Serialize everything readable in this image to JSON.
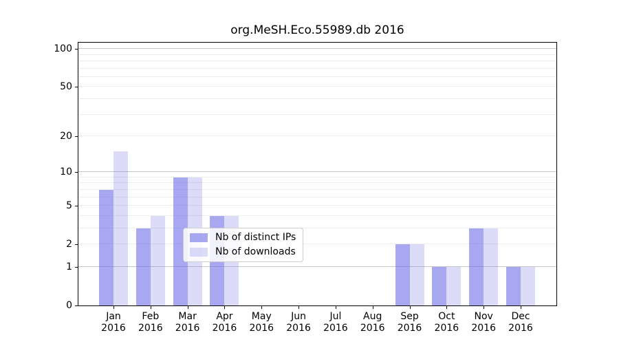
{
  "figure": {
    "background": "#ffffff",
    "frame_color": "#000000"
  },
  "chart_data": {
    "type": "bar",
    "title": "org.MeSH.Eco.55989.db 2016",
    "xlabel": "",
    "ylabel": "",
    "categories": [
      "Jan",
      "Feb",
      "Mar",
      "Apr",
      "May",
      "Jun",
      "Jul",
      "Aug",
      "Sep",
      "Oct",
      "Nov",
      "Dec"
    ],
    "category_year": "2016",
    "series": [
      {
        "name": "Nb of distinct IPs",
        "color": "rgba(114,114,232,0.62)",
        "values": [
          7,
          3,
          9,
          4,
          0,
          0,
          0,
          0,
          2,
          1,
          3,
          1
        ]
      },
      {
        "name": "Nb of downloads",
        "color": "rgba(114,114,232,0.25)",
        "values": [
          15,
          4,
          9,
          4,
          0,
          0,
          0,
          0,
          2,
          1,
          3,
          1
        ]
      }
    ],
    "y_axis": {
      "scale": "log10(1+x)",
      "tick_labels": [
        0,
        1,
        2,
        5,
        10,
        20,
        50,
        100
      ],
      "major_gridlines": [
        1,
        10,
        100
      ],
      "minor_gridlines": [
        2,
        3,
        4,
        5,
        6,
        7,
        8,
        9,
        20,
        30,
        40,
        50,
        60,
        70,
        80,
        90
      ],
      "ylim": [
        0,
        112
      ]
    },
    "grid": true,
    "legend": {
      "position": "inside lower-center",
      "entries": [
        "Nb of distinct IPs",
        "Nb of downloads"
      ]
    },
    "colors": {
      "major_grid": "#c4c4c4",
      "minor_grid": "#ececec",
      "bar_fill_base": "#7272e8",
      "distinct_ips_rendered": "#a8a8f5",
      "downloads_rendered": "#d9d9f9"
    }
  }
}
